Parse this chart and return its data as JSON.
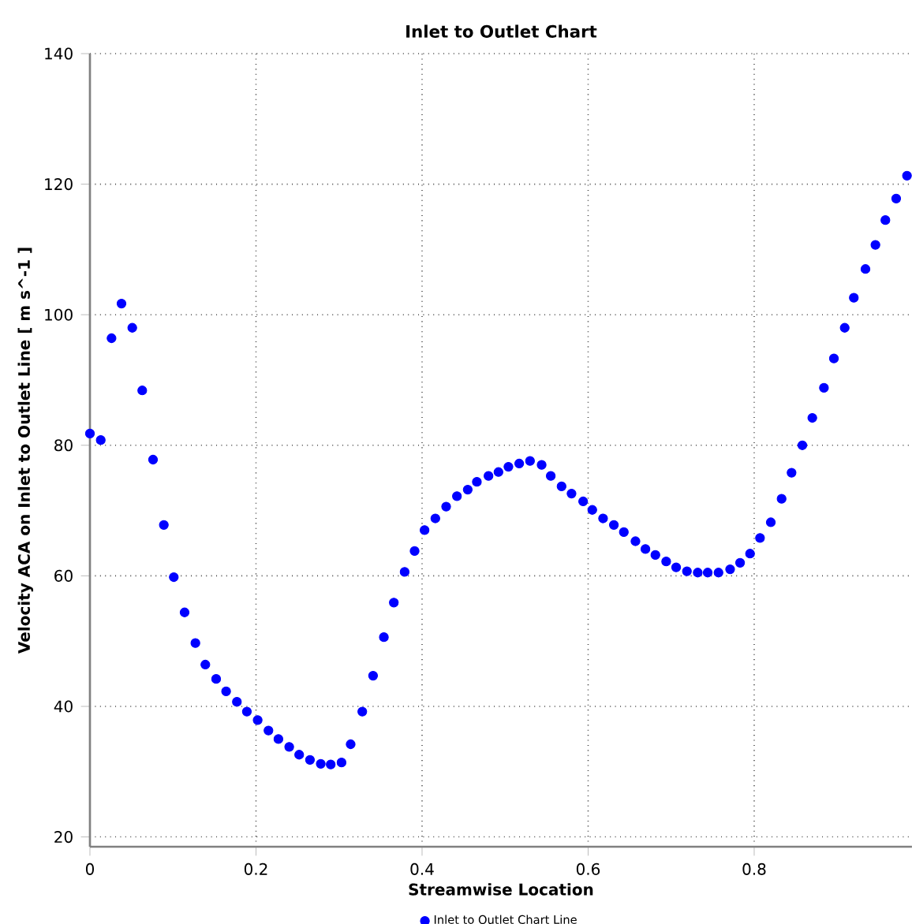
{
  "chart_data": {
    "type": "scatter",
    "title": "Inlet to Outlet Chart",
    "xlabel": "Streamwise Location",
    "ylabel": "Velocity ACA on Inlet to Outlet Line [ m s^-1 ]",
    "xlim": [
      0,
      0.99
    ],
    "ylim": [
      18.5,
      140
    ],
    "xticks": [
      0,
      0.2,
      0.4,
      0.6,
      0.8
    ],
    "yticks": [
      20,
      40,
      60,
      80,
      100,
      120,
      140
    ],
    "grid": true,
    "legend": "bottom",
    "marker": "circle",
    "series": [
      {
        "name": "Inlet to Outlet Chart Line",
        "color": "#0000ff",
        "x": [
          0.0,
          0.013,
          0.026,
          0.038,
          0.051,
          0.063,
          0.076,
          0.089,
          0.101,
          0.114,
          0.127,
          0.139,
          0.152,
          0.164,
          0.177,
          0.189,
          0.202,
          0.215,
          0.227,
          0.24,
          0.252,
          0.265,
          0.278,
          0.29,
          0.303,
          0.314,
          0.328,
          0.341,
          0.354,
          0.366,
          0.379,
          0.391,
          0.403,
          0.416,
          0.429,
          0.442,
          0.455,
          0.466,
          0.48,
          0.492,
          0.504,
          0.517,
          0.53,
          0.544,
          0.555,
          0.568,
          0.58,
          0.594,
          0.605,
          0.618,
          0.631,
          0.643,
          0.657,
          0.669,
          0.681,
          0.694,
          0.706,
          0.719,
          0.732,
          0.744,
          0.757,
          0.771,
          0.783,
          0.795,
          0.807,
          0.82,
          0.833,
          0.845,
          0.858,
          0.87,
          0.884,
          0.896,
          0.909,
          0.92,
          0.934,
          0.946,
          0.958,
          0.971,
          0.984
        ],
        "values": [
          81.8,
          80.8,
          96.4,
          101.7,
          98.0,
          88.4,
          77.8,
          67.8,
          59.8,
          54.4,
          49.7,
          46.4,
          44.2,
          42.3,
          40.7,
          39.2,
          37.9,
          36.3,
          35.0,
          33.8,
          32.6,
          31.8,
          31.2,
          31.1,
          31.4,
          34.2,
          39.2,
          44.7,
          50.6,
          55.9,
          60.6,
          63.8,
          67.0,
          68.8,
          70.6,
          72.2,
          73.2,
          74.4,
          75.3,
          75.9,
          76.7,
          77.2,
          77.6,
          77.0,
          75.3,
          73.7,
          72.6,
          71.4,
          70.1,
          68.8,
          67.8,
          66.7,
          65.3,
          64.1,
          63.2,
          62.2,
          61.3,
          60.7,
          60.5,
          60.5,
          60.5,
          61.0,
          62.0,
          63.4,
          65.8,
          68.2,
          71.8,
          75.8,
          80.0,
          84.2,
          88.8,
          93.3,
          98.0,
          102.6,
          107.0,
          110.7,
          114.5,
          117.8,
          121.3
        ]
      }
    ]
  }
}
